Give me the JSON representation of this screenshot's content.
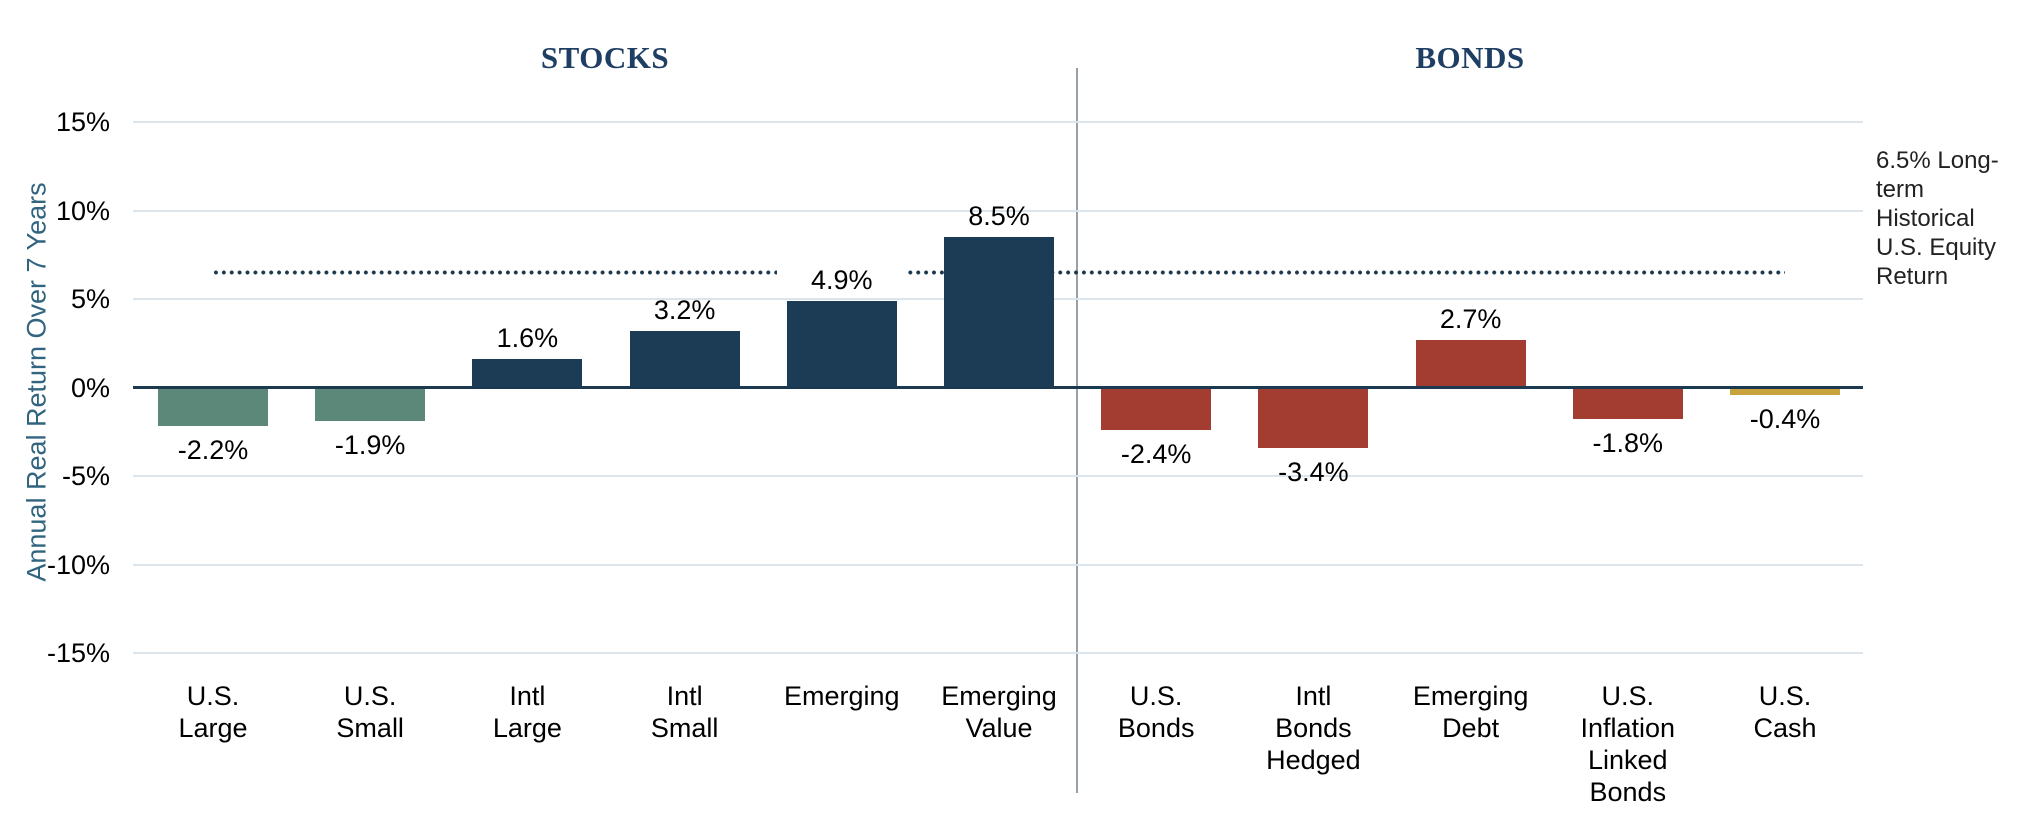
{
  "chart_data": {
    "type": "bar",
    "ylabel": "Annual Real Return Over 7 Years",
    "ylim": [
      -17.5,
      17.5
    ],
    "grid": "horizontal",
    "sections": [
      {
        "id": "stocks",
        "title": "STOCKS"
      },
      {
        "id": "bonds",
        "title": "BONDS"
      }
    ],
    "yticks": [
      {
        "value": 15,
        "label": "15%"
      },
      {
        "value": 10,
        "label": "10%"
      },
      {
        "value": 5,
        "label": "5%"
      },
      {
        "value": 0,
        "label": "0%"
      },
      {
        "value": -5,
        "label": "-5%"
      },
      {
        "value": -10,
        "label": "-10%"
      },
      {
        "value": -15,
        "label": "-15%"
      }
    ],
    "bars": [
      {
        "section": "stocks",
        "category": "U.S. Large",
        "category_lines": [
          "U.S.",
          "Large"
        ],
        "value": -2.2,
        "value_label": "-2.2%",
        "color": "#5b8878"
      },
      {
        "section": "stocks",
        "category": "U.S. Small",
        "category_lines": [
          "U.S.",
          "Small"
        ],
        "value": -1.9,
        "value_label": "-1.9%",
        "color": "#5b8878"
      },
      {
        "section": "stocks",
        "category": "Intl Large",
        "category_lines": [
          "Intl",
          "Large"
        ],
        "value": 1.6,
        "value_label": "1.6%",
        "color": "#1c3b55"
      },
      {
        "section": "stocks",
        "category": "Intl Small",
        "category_lines": [
          "Intl",
          "Small"
        ],
        "value": 3.2,
        "value_label": "3.2%",
        "color": "#1c3b55"
      },
      {
        "section": "stocks",
        "category": "Emerging",
        "category_lines": [
          "Emerging"
        ],
        "value": 4.9,
        "value_label": "4.9%",
        "color": "#1c3b55"
      },
      {
        "section": "stocks",
        "category": "Emerging Value",
        "category_lines": [
          "Emerging",
          "Value"
        ],
        "value": 8.5,
        "value_label": "8.5%",
        "color": "#1c3b55"
      },
      {
        "section": "bonds",
        "category": "U.S. Bonds",
        "category_lines": [
          "U.S.",
          "Bonds"
        ],
        "value": -2.4,
        "value_label": "-2.4%",
        "color": "#a33d31"
      },
      {
        "section": "bonds",
        "category": "Intl Bonds Hedged",
        "category_lines": [
          "Intl",
          "Bonds",
          "Hedged"
        ],
        "value": -3.4,
        "value_label": "-3.4%",
        "color": "#a33d31"
      },
      {
        "section": "bonds",
        "category": "Emerging Debt",
        "category_lines": [
          "Emerging",
          "Debt"
        ],
        "value": 2.7,
        "value_label": "2.7%",
        "color": "#a33d31"
      },
      {
        "section": "bonds",
        "category": "U.S. Inflation Linked Bonds",
        "category_lines": [
          "U.S.",
          "Inflation",
          "Linked",
          "Bonds"
        ],
        "value": -1.8,
        "value_label": "-1.8%",
        "color": "#a33d31"
      },
      {
        "section": "bonds",
        "category": "U.S. Cash",
        "category_lines": [
          "U.S.",
          "Cash"
        ],
        "value": -0.4,
        "value_label": "-0.4%",
        "color": "#c8a23c"
      }
    ],
    "reference_line": {
      "value": 6.5,
      "label": "6.5% Long-term Historical U.S. Equity Return",
      "style": "dotted",
      "color": "#1b3a52"
    },
    "colors": {
      "us_stocks_bar": "#5b8878",
      "intl_emerging_stocks_bar": "#1c3b55",
      "bonds_bar": "#a33d31",
      "cash_bar": "#c8a23c",
      "zero_axis_line": "#1b3a52",
      "gridline": "#dce5ec",
      "section_divider": "#98a0a7",
      "section_title_text": "#1f3e63",
      "y_axis_title_text": "#31647f"
    }
  }
}
